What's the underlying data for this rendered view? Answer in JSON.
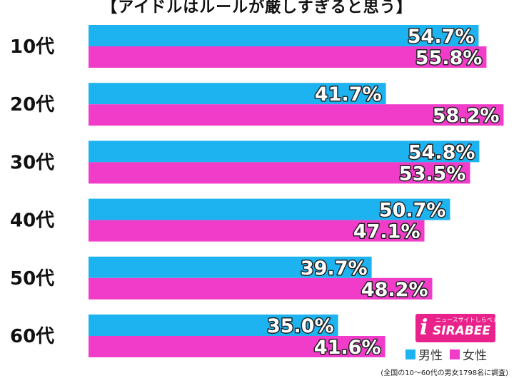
{
  "chart_data": {
    "type": "bar",
    "orientation": "horizontal",
    "title": "【アイドルはルールが厳しすぎると思う】",
    "categories": [
      "10代",
      "20代",
      "30代",
      "40代",
      "50代",
      "60代"
    ],
    "series": [
      {
        "name": "男性",
        "color": "#1db3f0",
        "values": [
          54.7,
          41.7,
          54.8,
          50.7,
          39.7,
          35.0
        ]
      },
      {
        "name": "女性",
        "color": "#f03cc8",
        "values": [
          55.8,
          58.2,
          53.5,
          47.1,
          48.2,
          41.6
        ]
      }
    ],
    "value_suffix": "%",
    "xlim": [
      0,
      60
    ],
    "grid": false,
    "legend_position": "bottom-right"
  },
  "logo": {
    "mark": "i",
    "text": "SIRABEE",
    "tagline": "ニュースサイトしらべぇ"
  },
  "footnote": "(全国の10〜60代の男女1798名に調査)"
}
